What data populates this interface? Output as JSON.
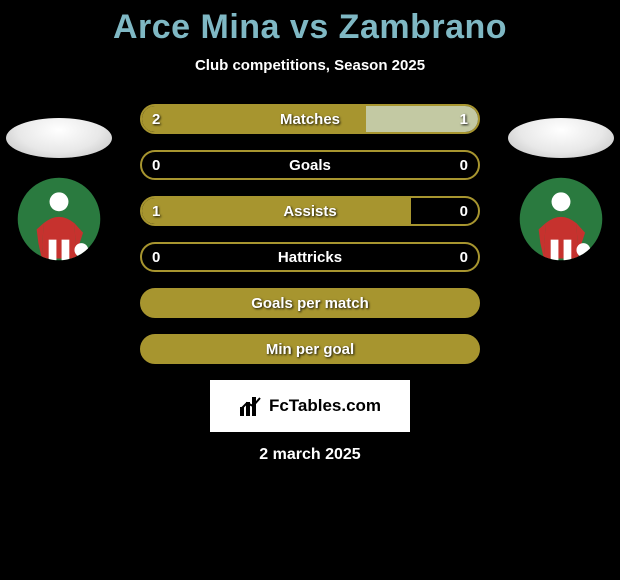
{
  "title_color": "#7fb8c4",
  "title": "Arce Mina vs Zambrano",
  "subtitle": "Club competitions, Season 2025",
  "colors": {
    "left_fill": "#a7952f",
    "right_fill": "#c3c9a3",
    "border_active": "#a7952f",
    "border_inactive": "#a7952f",
    "chip_bg": "#2f2a12",
    "badge_green": "#2a7a3f",
    "badge_red": "#c6322e",
    "badge_white": "#ffffff"
  },
  "rows": [
    {
      "label": "Matches",
      "left": "2",
      "right": "1",
      "left_pct": 66.7,
      "right_pct": 33.3
    },
    {
      "label": "Goals",
      "left": "0",
      "right": "0",
      "left_pct": 0,
      "right_pct": 0
    },
    {
      "label": "Assists",
      "left": "1",
      "right": "0",
      "left_pct": 80,
      "right_pct": 0
    },
    {
      "label": "Hattricks",
      "left": "0",
      "right": "0",
      "left_pct": 0,
      "right_pct": 0
    }
  ],
  "chips": [
    {
      "label": "Goals per match"
    },
    {
      "label": "Min per goal"
    }
  ],
  "attrib": {
    "text": "FcTables.com"
  },
  "date": "2 march 2025"
}
